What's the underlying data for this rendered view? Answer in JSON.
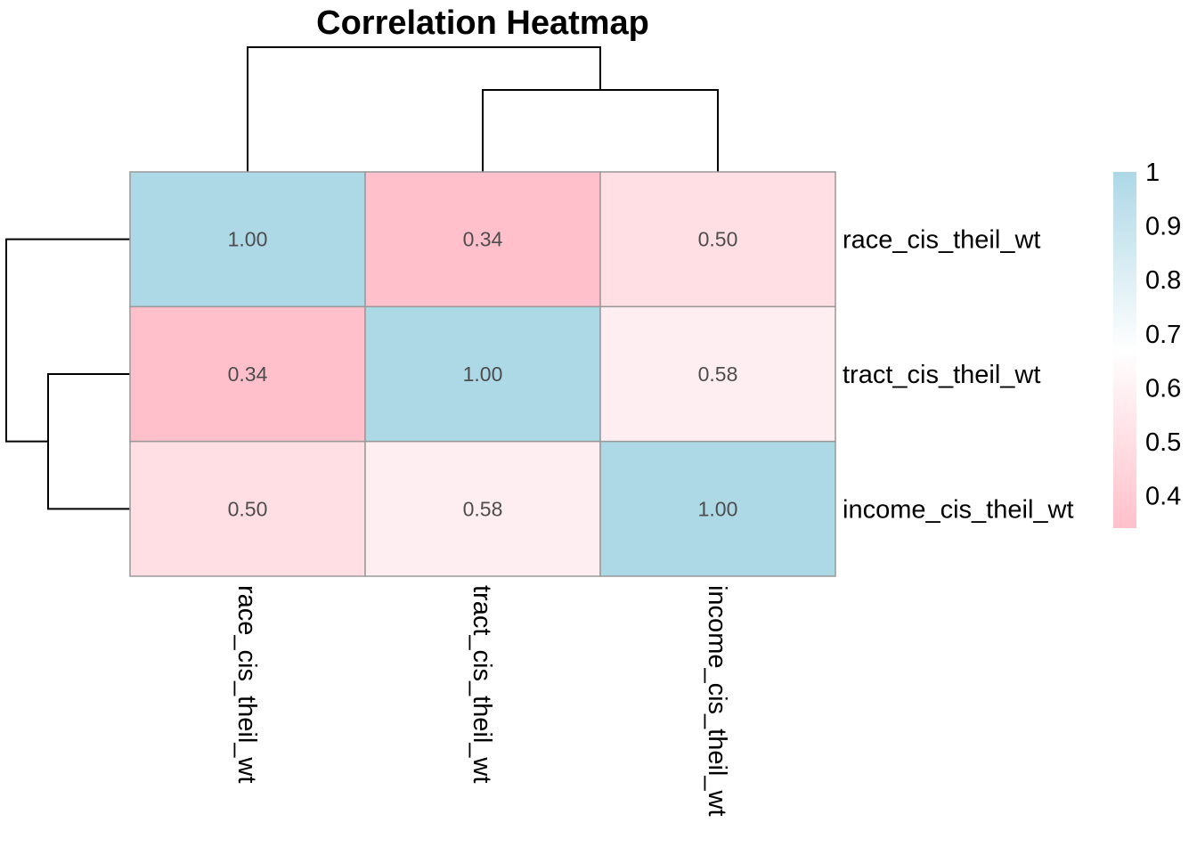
{
  "chart_data": {
    "type": "heatmap",
    "title": "Correlation Heatmap",
    "rows": [
      "race_cis_theil_wt",
      "tract_cis_theil_wt",
      "income_cis_theil_wt"
    ],
    "columns": [
      "race_cis_theil_wt",
      "tract_cis_theil_wt",
      "income_cis_theil_wt"
    ],
    "values": [
      [
        1.0,
        0.34,
        0.5
      ],
      [
        0.34,
        1.0,
        0.58
      ],
      [
        0.5,
        0.58,
        1.0
      ]
    ],
    "cell_labels": [
      [
        "1.00",
        "0.34",
        "0.50"
      ],
      [
        "0.34",
        "1.00",
        "0.58"
      ],
      [
        "0.50",
        "0.58",
        "1.00"
      ]
    ],
    "legend": {
      "range": [
        0.34,
        1
      ],
      "ticks": [
        {
          "value": 1,
          "label": "1"
        },
        {
          "value": 0.9,
          "label": "0.9"
        },
        {
          "value": 0.8,
          "label": "0.8"
        },
        {
          "value": 0.7,
          "label": "0.7"
        },
        {
          "value": 0.6,
          "label": "0.6"
        },
        {
          "value": 0.5,
          "label": "0.5"
        },
        {
          "value": 0.4,
          "label": "0.4"
        }
      ],
      "colors": {
        "low": "#ffc0cb",
        "mid": "#ffffff",
        "high": "#add8e6"
      }
    },
    "dendrogram": {
      "clusters": [
        [
          "tract_cis_theil_wt",
          "income_cis_theil_wt"
        ],
        [
          "race_cis_theil_wt"
        ]
      ]
    },
    "cell_border_color": "#999999",
    "legend_placement": "right"
  }
}
